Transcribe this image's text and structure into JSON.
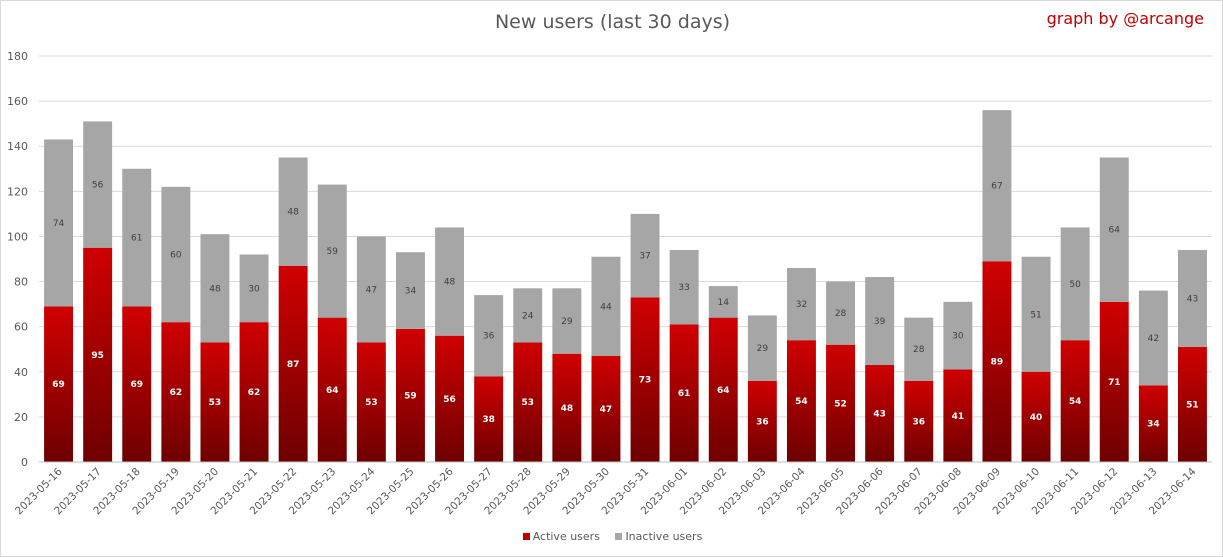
{
  "chart_data": {
    "type": "bar",
    "stacked": true,
    "title": "New users (last 30 days)",
    "credit": "graph by @arcange",
    "xlabel": "",
    "ylabel": "",
    "ylim": [
      0,
      180
    ],
    "yticks": [
      0,
      20,
      40,
      60,
      80,
      100,
      120,
      140,
      160,
      180
    ],
    "grid": true,
    "legend_position": "bottom",
    "categories": [
      "2023-05-16",
      "2023-05-17",
      "2023-05-18",
      "2023-05-19",
      "2023-05-20",
      "2023-05-21",
      "2023-05-22",
      "2023-05-23",
      "2023-05-24",
      "2023-05-25",
      "2023-05-26",
      "2023-05-27",
      "2023-05-28",
      "2023-05-29",
      "2023-05-30",
      "2023-05-31",
      "2023-06-01",
      "2023-06-02",
      "2023-06-03",
      "2023-06-04",
      "2023-06-05",
      "2023-06-06",
      "2023-06-07",
      "2023-06-08",
      "2023-06-09",
      "2023-06-10",
      "2023-06-11",
      "2023-06-12",
      "2023-06-13",
      "2023-06-14"
    ],
    "series": [
      {
        "name": "Active users",
        "color": "#c00000",
        "values": [
          69,
          95,
          69,
          62,
          53,
          62,
          87,
          64,
          53,
          59,
          56,
          38,
          53,
          48,
          47,
          73,
          61,
          64,
          36,
          54,
          52,
          43,
          36,
          41,
          89,
          40,
          54,
          71,
          34,
          51
        ]
      },
      {
        "name": "Inactive users",
        "color": "#a6a6a6",
        "values": [
          74,
          56,
          61,
          60,
          48,
          30,
          48,
          59,
          47,
          34,
          48,
          36,
          24,
          29,
          44,
          37,
          33,
          14,
          29,
          32,
          28,
          39,
          28,
          30,
          67,
          51,
          50,
          64,
          42,
          43
        ]
      }
    ]
  }
}
